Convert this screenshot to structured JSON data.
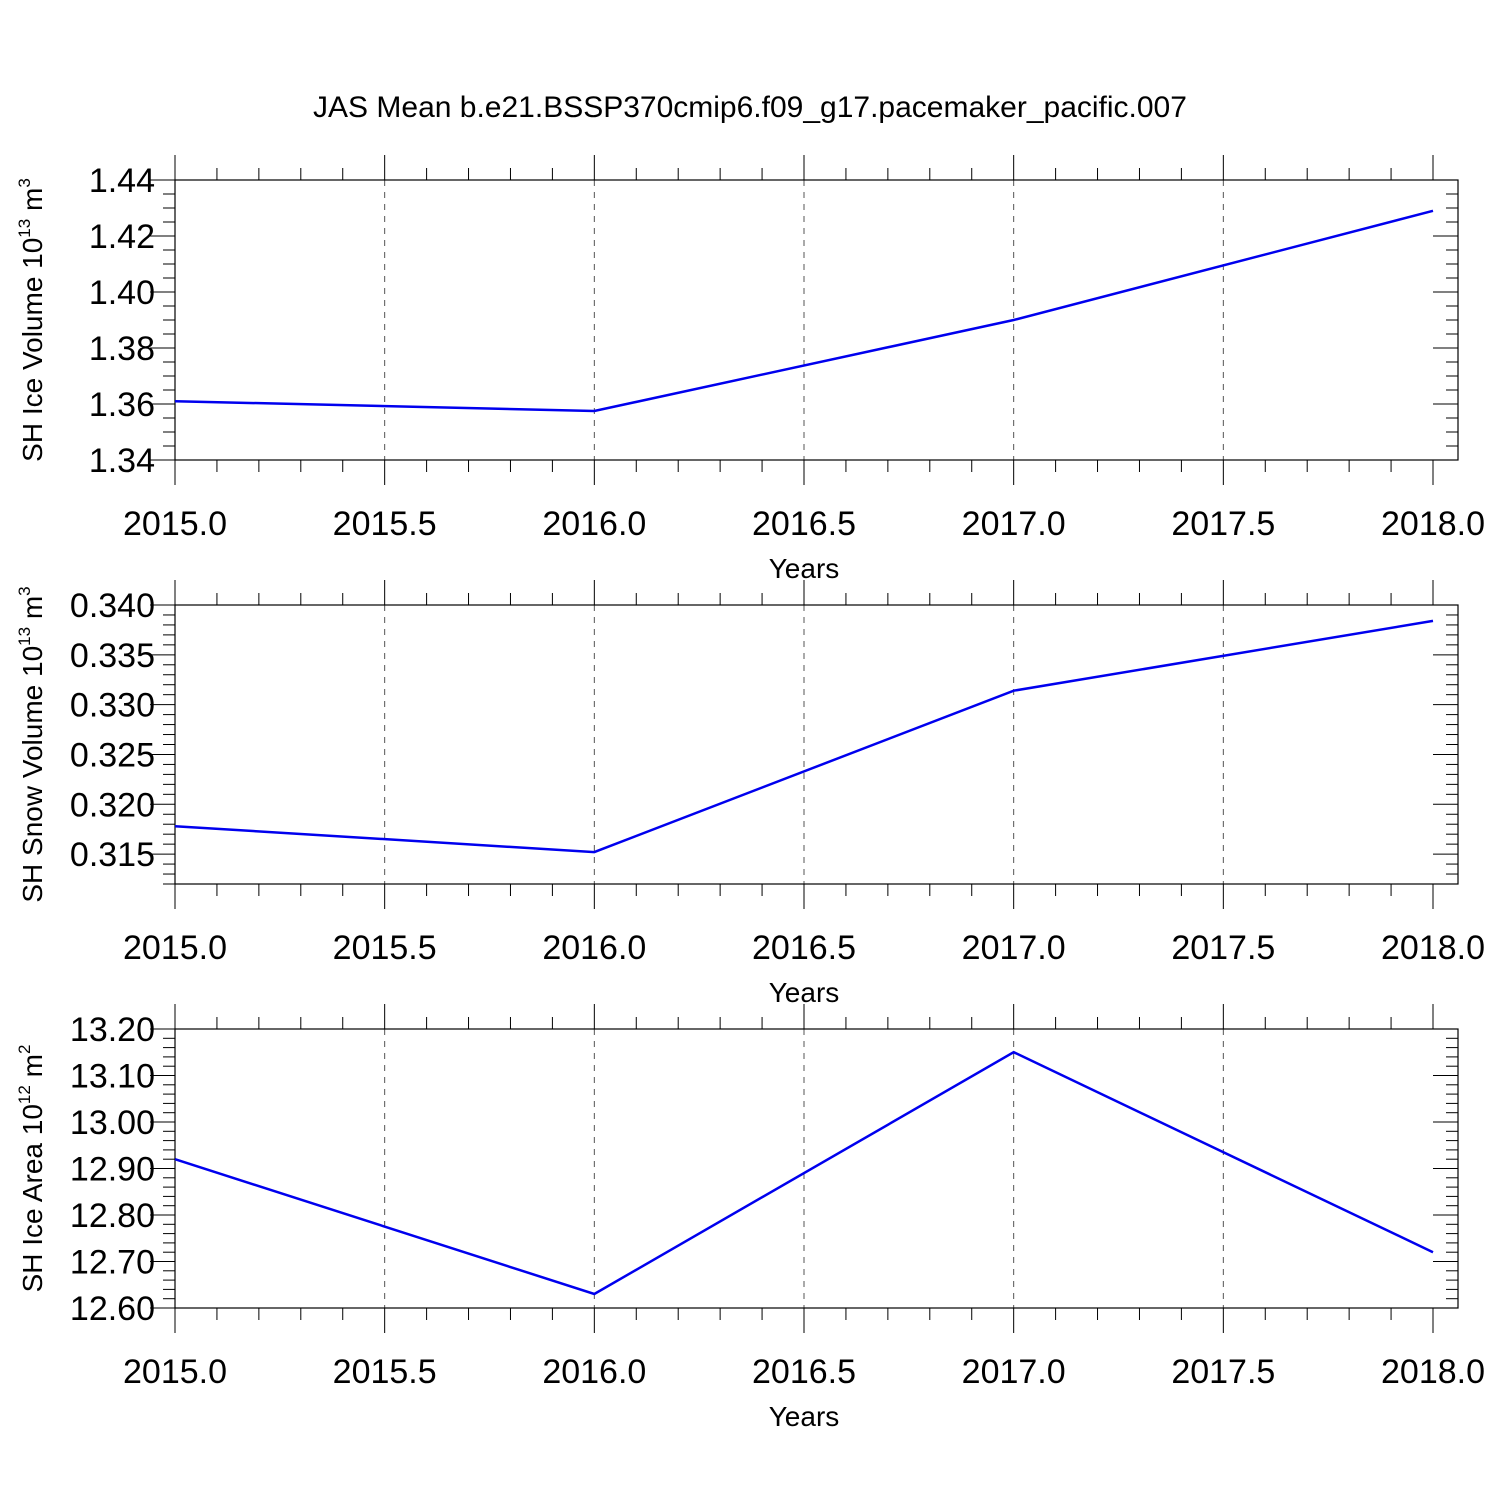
{
  "figure": {
    "title": "JAS Mean b.e21.BSSP370cmip6.f09_g17.pacemaker_pacific.007"
  },
  "chart_data": [
    {
      "type": "line",
      "xlabel": "Years",
      "ylabel": {
        "main": "SH Ice Volume 10",
        "exp": "13",
        "unit": " m",
        "unit_exp": "3"
      },
      "x": [
        2015,
        2016,
        2017,
        2018
      ],
      "series": [
        {
          "values": [
            1.361,
            1.3575,
            1.39,
            1.429
          ]
        }
      ],
      "xlim": [
        2015,
        2018
      ],
      "ylim": [
        1.34,
        1.44
      ],
      "xticks": [
        "2015.0",
        "2015.5",
        "2016.0",
        "2016.5",
        "2017.0",
        "2017.5",
        "2018.0"
      ],
      "yticks": [
        "1.34",
        "1.36",
        "1.38",
        "1.40",
        "1.42",
        "1.44"
      ],
      "line_color": "#0000ee",
      "grid": "vertical dashed"
    },
    {
      "type": "line",
      "xlabel": "Years",
      "ylabel": {
        "main": "SH Snow Volume 10",
        "exp": "13",
        "unit": " m",
        "unit_exp": "3"
      },
      "x": [
        2015,
        2016,
        2017,
        2018
      ],
      "series": [
        {
          "values": [
            0.3178,
            0.3152,
            0.3314,
            0.3384
          ]
        }
      ],
      "xlim": [
        2015,
        2018
      ],
      "ylim": [
        0.312,
        0.34
      ],
      "xticks": [
        "2015.0",
        "2015.5",
        "2016.0",
        "2016.5",
        "2017.0",
        "2017.5",
        "2018.0"
      ],
      "yticks": [
        "0.315",
        "0.320",
        "0.325",
        "0.330",
        "0.335",
        "0.340"
      ],
      "line_color": "#0000ee",
      "grid": "vertical dashed"
    },
    {
      "type": "line",
      "xlabel": "Years",
      "ylabel": {
        "main": "SH Ice Area 10",
        "exp": "12",
        "unit": " m",
        "unit_exp": "2"
      },
      "x": [
        2015,
        2016,
        2017,
        2018
      ],
      "series": [
        {
          "values": [
            12.92,
            12.63,
            13.15,
            12.72
          ]
        }
      ],
      "xlim": [
        2015,
        2018
      ],
      "ylim": [
        12.6,
        13.2
      ],
      "xticks": [
        "2015.0",
        "2015.5",
        "2016.0",
        "2016.5",
        "2017.0",
        "2017.5",
        "2018.0"
      ],
      "yticks": [
        "12.60",
        "12.70",
        "12.80",
        "12.90",
        "13.00",
        "13.10",
        "13.20"
      ],
      "line_color": "#0000ee",
      "grid": "vertical dashed"
    }
  ]
}
